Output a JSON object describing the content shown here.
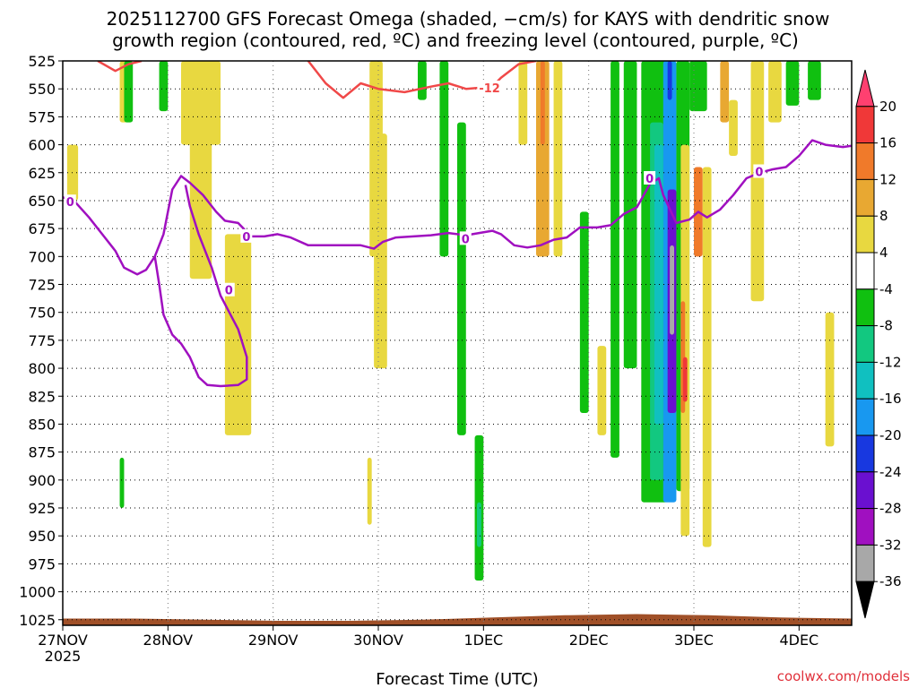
{
  "chart_data": {
    "type": "heatmap",
    "title_line1": "2025112700 GFS Forecast Omega (shaded, −cm/s) for KAYS with dendritic snow",
    "title_line2": "growth region (contoured, red, ºC) and freezing level (contoured, purple, ºC)",
    "xlabel": "Forecast Time (UTC)",
    "credit": "coolwx.com/models",
    "y_ticks": [
      525,
      550,
      575,
      600,
      625,
      650,
      675,
      700,
      725,
      750,
      775,
      800,
      825,
      850,
      875,
      900,
      925,
      950,
      975,
      1000,
      1025
    ],
    "ylim": [
      525,
      1030
    ],
    "x_ticks": [
      {
        "t": 0,
        "label": "27NOV",
        "sub": "2025"
      },
      {
        "t": 24,
        "label": "28NOV",
        "sub": ""
      },
      {
        "t": 48,
        "label": "29NOV",
        "sub": ""
      },
      {
        "t": 72,
        "label": "30NOV",
        "sub": ""
      },
      {
        "t": 96,
        "label": "1DEC",
        "sub": ""
      },
      {
        "t": 120,
        "label": "2DEC",
        "sub": ""
      },
      {
        "t": 144,
        "label": "3DEC",
        "sub": ""
      },
      {
        "t": 168,
        "label": "4DEC",
        "sub": ""
      }
    ],
    "xlim": [
      0,
      180
    ],
    "colorbar": {
      "ticks": [
        "20",
        "16",
        "12",
        "8",
        "4",
        "-4",
        "-8",
        "-12",
        "-16",
        "-20",
        "-24",
        "-28",
        "-32",
        "-36"
      ],
      "colors": [
        "#ff4070",
        "#f03838",
        "#f07a2a",
        "#e8a832",
        "#e8d840",
        "#ffffff",
        "#10c010",
        "#12c880",
        "#10c0c0",
        "#1898f0",
        "#1838e0",
        "#6a10d0",
        "#a010c0",
        "#a8a8a8",
        "#000000"
      ]
    },
    "freezing_level": {
      "label": "0",
      "points": [
        [
          0,
          647
        ],
        [
          3,
          652
        ],
        [
          6,
          665
        ],
        [
          9,
          680
        ],
        [
          12,
          695
        ],
        [
          14,
          710
        ],
        [
          17,
          716
        ],
        [
          19,
          712
        ],
        [
          21,
          700
        ],
        [
          23,
          680
        ],
        [
          25,
          640
        ],
        [
          27,
          628
        ],
        [
          29,
          634
        ],
        [
          32,
          645
        ],
        [
          35,
          660
        ],
        [
          37,
          668
        ],
        [
          40,
          670
        ],
        [
          43,
          682
        ],
        [
          46,
          682
        ],
        [
          49,
          680
        ],
        [
          52,
          683
        ],
        [
          56,
          690
        ],
        [
          60,
          690
        ],
        [
          64,
          690
        ],
        [
          68,
          690
        ],
        [
          71,
          693
        ],
        [
          73,
          687
        ],
        [
          76,
          683
        ],
        [
          80,
          682
        ],
        [
          84,
          681
        ],
        [
          88,
          679
        ],
        [
          92,
          681
        ],
        [
          95,
          679
        ],
        [
          98,
          677
        ],
        [
          100,
          680
        ],
        [
          103,
          690
        ],
        [
          106,
          692
        ],
        [
          109,
          690
        ],
        [
          112,
          685
        ],
        [
          115,
          683
        ],
        [
          118,
          674
        ],
        [
          122,
          674
        ],
        [
          125,
          672
        ],
        [
          128,
          662
        ],
        [
          131,
          656
        ],
        [
          134,
          635
        ],
        [
          136,
          630
        ],
        [
          137,
          645
        ],
        [
          140,
          670
        ],
        [
          143,
          667
        ],
        [
          145,
          660
        ],
        [
          147,
          665
        ],
        [
          150,
          658
        ],
        [
          153,
          645
        ],
        [
          156,
          630
        ],
        [
          159,
          625
        ],
        [
          162,
          622
        ],
        [
          165,
          620
        ],
        [
          168,
          610
        ],
        [
          171,
          596
        ],
        [
          174,
          600
        ],
        [
          178,
          602
        ],
        [
          180,
          601
        ]
      ],
      "loop": [
        [
          21,
          700
        ],
        [
          22,
          725
        ],
        [
          23,
          752
        ],
        [
          25,
          770
        ],
        [
          27,
          778
        ],
        [
          29,
          790
        ],
        [
          31,
          808
        ],
        [
          33,
          815
        ],
        [
          36,
          816
        ],
        [
          40,
          815
        ],
        [
          42,
          810
        ],
        [
          42,
          790
        ],
        [
          40,
          765
        ],
        [
          36,
          735
        ],
        [
          34,
          710
        ],
        [
          31,
          680
        ],
        [
          29,
          655
        ],
        [
          28,
          636
        ]
      ]
    },
    "dgz_minus12": {
      "label": "-12",
      "points": [
        [
          8,
          525
        ],
        [
          12,
          534
        ],
        [
          15,
          528
        ],
        [
          18,
          525
        ]
      ],
      "points2": [
        [
          56,
          525
        ],
        [
          60,
          545
        ],
        [
          64,
          558
        ],
        [
          68,
          545
        ],
        [
          72,
          550
        ],
        [
          78,
          553
        ],
        [
          84,
          548
        ],
        [
          88,
          545
        ],
        [
          92,
          550
        ],
        [
          98,
          548
        ],
        [
          100,
          540
        ],
        [
          104,
          528
        ],
        [
          108,
          525
        ]
      ]
    },
    "terrain": {
      "fill": "#a05028",
      "surface_pressure": [
        1024,
        1024,
        1025,
        1026,
        1026,
        1025,
        1023,
        1021,
        1020,
        1021,
        1023,
        1024
      ]
    },
    "omega_regions": [
      {
        "t0": 1,
        "t1": 3.5,
        "p0": 600,
        "p1": 650,
        "color": "#e8d840"
      },
      {
        "t0": 13,
        "t1": 15,
        "p0": 525,
        "p1": 580,
        "color": "#e8d840"
      },
      {
        "t0": 14,
        "t1": 16,
        "p0": 525,
        "p1": 580,
        "color": "#10c010"
      },
      {
        "t0": 22,
        "t1": 24,
        "p0": 525,
        "p1": 570,
        "color": "#10c010"
      },
      {
        "t0": 27,
        "t1": 36,
        "p0": 525,
        "p1": 600,
        "color": "#e8d840"
      },
      {
        "t0": 29,
        "t1": 34,
        "p0": 580,
        "p1": 720,
        "color": "#e8d840"
      },
      {
        "t0": 37,
        "t1": 43,
        "p0": 680,
        "p1": 860,
        "color": "#e8d840"
      },
      {
        "t0": 13,
        "t1": 14,
        "p0": 880,
        "p1": 925,
        "color": "#10c010"
      },
      {
        "t0": 70,
        "t1": 73,
        "p0": 525,
        "p1": 700,
        "color": "#e8d840"
      },
      {
        "t0": 71,
        "t1": 74,
        "p0": 590,
        "p1": 800,
        "color": "#e8d840"
      },
      {
        "t0": 69.5,
        "t1": 70.5,
        "p0": 880,
        "p1": 940,
        "color": "#e8d840"
      },
      {
        "t0": 81,
        "t1": 83,
        "p0": 525,
        "p1": 560,
        "color": "#10c010"
      },
      {
        "t0": 86,
        "t1": 88,
        "p0": 525,
        "p1": 700,
        "color": "#10c010"
      },
      {
        "t0": 90,
        "t1": 92,
        "p0": 580,
        "p1": 860,
        "color": "#10c010"
      },
      {
        "t0": 94,
        "t1": 96,
        "p0": 860,
        "p1": 990,
        "color": "#10c010"
      },
      {
        "t0": 94.5,
        "t1": 95.5,
        "p0": 920,
        "p1": 960,
        "color": "#12c880"
      },
      {
        "t0": 104,
        "t1": 106,
        "p0": 525,
        "p1": 600,
        "color": "#e8d840"
      },
      {
        "t0": 108,
        "t1": 111,
        "p0": 525,
        "p1": 700,
        "color": "#e8a832"
      },
      {
        "t0": 109,
        "t1": 110,
        "p0": 525,
        "p1": 600,
        "color": "#f07a2a"
      },
      {
        "t0": 112,
        "t1": 114,
        "p0": 525,
        "p1": 700,
        "color": "#e8d840"
      },
      {
        "t0": 118,
        "t1": 120,
        "p0": 660,
        "p1": 840,
        "color": "#10c010"
      },
      {
        "t0": 122,
        "t1": 124,
        "p0": 780,
        "p1": 860,
        "color": "#e8d840"
      },
      {
        "t0": 125,
        "t1": 127,
        "p0": 525,
        "p1": 880,
        "color": "#10c010"
      },
      {
        "t0": 128,
        "t1": 131,
        "p0": 525,
        "p1": 800,
        "color": "#10c010"
      },
      {
        "t0": 132,
        "t1": 138,
        "p0": 525,
        "p1": 920,
        "color": "#10c010"
      },
      {
        "t0": 134,
        "t1": 137,
        "p0": 580,
        "p1": 900,
        "color": "#12c880"
      },
      {
        "t0": 135,
        "t1": 137,
        "p0": 600,
        "p1": 850,
        "color": "#10c0c0"
      },
      {
        "t0": 137,
        "t1": 140,
        "p0": 525,
        "p1": 920,
        "color": "#1898f0"
      },
      {
        "t0": 138,
        "t1": 139,
        "p0": 525,
        "p1": 560,
        "color": "#1838e0"
      },
      {
        "t0": 138,
        "t1": 140,
        "p0": 640,
        "p1": 840,
        "color": "#6a10d0"
      },
      {
        "t0": 138.5,
        "t1": 139.5,
        "p0": 690,
        "p1": 770,
        "color": "#a8a8a8"
      },
      {
        "t0": 140,
        "t1": 143,
        "p0": 525,
        "p1": 910,
        "color": "#10c010"
      },
      {
        "t0": 141,
        "t1": 143,
        "p0": 600,
        "p1": 950,
        "color": "#e8d840"
      },
      {
        "t0": 141,
        "t1": 142,
        "p0": 740,
        "p1": 840,
        "color": "#f07a2a"
      },
      {
        "t0": 141.5,
        "t1": 142.5,
        "p0": 790,
        "p1": 830,
        "color": "#f03838"
      },
      {
        "t0": 143,
        "t1": 147,
        "p0": 525,
        "p1": 570,
        "color": "#10c010"
      },
      {
        "t0": 144,
        "t1": 146,
        "p0": 620,
        "p1": 700,
        "color": "#f07a2a"
      },
      {
        "t0": 146,
        "t1": 148,
        "p0": 620,
        "p1": 960,
        "color": "#e8d840"
      },
      {
        "t0": 150,
        "t1": 152,
        "p0": 525,
        "p1": 580,
        "color": "#e8a832"
      },
      {
        "t0": 152,
        "t1": 154,
        "p0": 560,
        "p1": 610,
        "color": "#e8d840"
      },
      {
        "t0": 157,
        "t1": 160,
        "p0": 525,
        "p1": 740,
        "color": "#e8d840"
      },
      {
        "t0": 161,
        "t1": 164,
        "p0": 525,
        "p1": 580,
        "color": "#e8d840"
      },
      {
        "t0": 165,
        "t1": 168,
        "p0": 525,
        "p1": 565,
        "color": "#10c010"
      },
      {
        "t0": 170,
        "t1": 173,
        "p0": 525,
        "p1": 560,
        "color": "#10c010"
      },
      {
        "t0": 174,
        "t1": 176,
        "p0": 750,
        "p1": 870,
        "color": "#e8d840"
      }
    ]
  }
}
